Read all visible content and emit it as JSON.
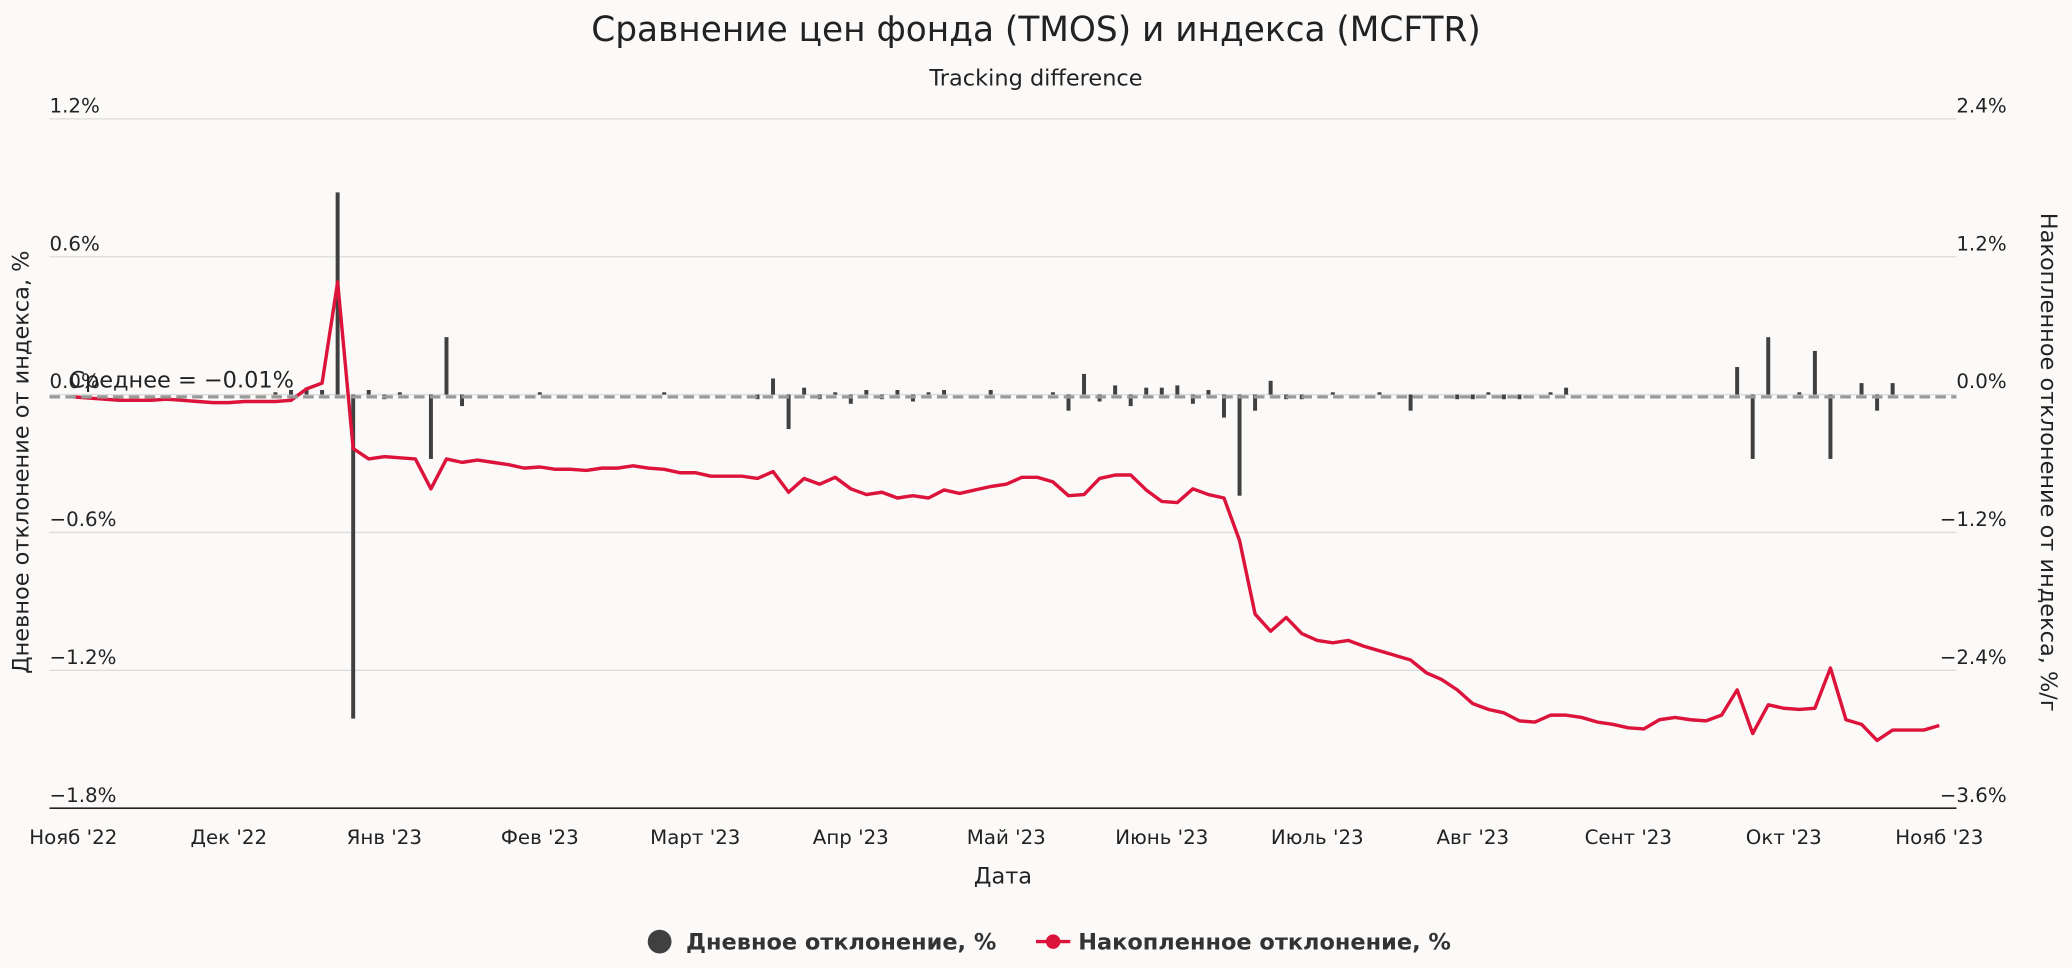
{
  "chart_data": {
    "type": "combo",
    "title": "Сравнение цен фонда (TMOS) и индекса (MCFTR)",
    "subtitle": "Tracking difference",
    "x_label": "Дата",
    "y_label": "Дневное отклонение от индекса, %",
    "y2_label": "Накопленное отклонение от индекса, %/г",
    "annotation": {
      "text": "Среднее = −0.01%",
      "value": -0.01
    },
    "grid": true,
    "legend": "bottom",
    "ylim": [
      -1.8,
      1.2
    ],
    "yticks": [
      {
        "value": 1.2,
        "label": "1.2%"
      },
      {
        "value": 0.6,
        "label": "0.6%"
      },
      {
        "value": 0,
        "label": "0.0%"
      },
      {
        "value": -0.6,
        "label": "−0.6%"
      },
      {
        "value": -1.2,
        "label": "−1.2%"
      },
      {
        "value": -1.8,
        "label": "−1.8%"
      }
    ],
    "y2lim": [
      -3.6,
      2.4
    ],
    "y2ticks": [
      {
        "value": 2.4,
        "label": "2.4%"
      },
      {
        "value": 1.2,
        "label": "1.2%"
      },
      {
        "value": 0,
        "label": "0.0%"
      },
      {
        "value": -1.2,
        "label": "−1.2%"
      },
      {
        "value": -2.4,
        "label": "−2.4%"
      },
      {
        "value": -3.6,
        "label": "−3.6%"
      }
    ],
    "categories": [
      "Нояб '22",
      null,
      null,
      null,
      null,
      null,
      null,
      null,
      null,
      null,
      "Дек '22",
      null,
      null,
      null,
      null,
      null,
      null,
      null,
      null,
      null,
      "Янв '23",
      null,
      null,
      null,
      null,
      null,
      null,
      null,
      null,
      null,
      "Фев '23",
      null,
      null,
      null,
      null,
      null,
      null,
      null,
      null,
      null,
      "Март '23",
      null,
      null,
      null,
      null,
      null,
      null,
      null,
      null,
      null,
      "Апр '23",
      null,
      null,
      null,
      null,
      null,
      null,
      null,
      null,
      null,
      "Май '23",
      null,
      null,
      null,
      null,
      null,
      null,
      null,
      null,
      null,
      "Июнь '23",
      null,
      null,
      null,
      null,
      null,
      null,
      null,
      null,
      null,
      "Июль '23",
      null,
      null,
      null,
      null,
      null,
      null,
      null,
      null,
      null,
      "Авг '23",
      null,
      null,
      null,
      null,
      null,
      null,
      null,
      null,
      null,
      "Сент '23",
      null,
      null,
      null,
      null,
      null,
      null,
      null,
      null,
      null,
      "Окт '23",
      null,
      null,
      null,
      null,
      null,
      null,
      null,
      null,
      null,
      "Нояб '23"
    ],
    "series": [
      {
        "name": "Дневное отклонение, %",
        "type": "bar",
        "axis": "y",
        "color": "#404040",
        "values": [
          0,
          0,
          0,
          0,
          0,
          0,
          0,
          0,
          0,
          0,
          0,
          0,
          0,
          0.01,
          0.02,
          0.03,
          0.02,
          0.88,
          -1.41,
          0.02,
          -0.02,
          0.01,
          0,
          -0.28,
          0.25,
          -0.05,
          0,
          0,
          0,
          0,
          0.01,
          0,
          0,
          0,
          0,
          0,
          0,
          0,
          0.01,
          0,
          0,
          0,
          0,
          0,
          -0.02,
          0.07,
          -0.15,
          0.03,
          -0.02,
          0.01,
          -0.04,
          0.02,
          -0.02,
          0.02,
          -0.03,
          0.01,
          0.02,
          0,
          0,
          0.02,
          0,
          0,
          0,
          0.01,
          -0.07,
          0.09,
          -0.03,
          0.04,
          -0.05,
          0.03,
          0.03,
          0.04,
          -0.04,
          0.02,
          -0.1,
          -0.44,
          -0.07,
          0.06,
          -0.02,
          -0.02,
          0,
          0.01,
          0,
          0,
          0.01,
          0,
          -0.07,
          0,
          0,
          -0.02,
          -0.02,
          0.01,
          -0.02,
          -0.02,
          0,
          0.01,
          0.03,
          0,
          0,
          0,
          0,
          0,
          0,
          0,
          0,
          0,
          0,
          0.12,
          -0.28,
          0.25,
          0,
          0.01,
          0.19,
          -0.28,
          0,
          0.05,
          -0.07,
          0.05,
          0,
          0,
          0
        ]
      },
      {
        "name": "Накопленное отклонение, %",
        "type": "line",
        "axis": "y2",
        "color": "#dc143c",
        "values": [
          -0.02,
          -0.03,
          -0.04,
          -0.05,
          -0.05,
          -0.05,
          -0.04,
          -0.05,
          -0.06,
          -0.07,
          -0.07,
          -0.06,
          -0.06,
          -0.06,
          -0.05,
          0.05,
          0.1,
          0.98,
          -0.47,
          -0.56,
          -0.54,
          -0.55,
          -0.56,
          -0.82,
          -0.56,
          -0.59,
          -0.57,
          -0.59,
          -0.61,
          -0.64,
          -0.63,
          -0.65,
          -0.65,
          -0.66,
          -0.64,
          -0.64,
          -0.62,
          -0.64,
          -0.65,
          -0.68,
          -0.68,
          -0.71,
          -0.71,
          -0.71,
          -0.73,
          -0.67,
          -0.85,
          -0.73,
          -0.78,
          -0.72,
          -0.82,
          -0.87,
          -0.85,
          -0.9,
          -0.88,
          -0.9,
          -0.83,
          -0.86,
          -0.83,
          -0.8,
          -0.78,
          -0.72,
          -0.72,
          -0.76,
          -0.88,
          -0.87,
          -0.73,
          -0.7,
          -0.7,
          -0.83,
          -0.93,
          -0.94,
          -0.82,
          -0.87,
          -0.9,
          -1.27,
          -1.91,
          -2.06,
          -1.94,
          -2.08,
          -2.14,
          -2.16,
          -2.14,
          -2.19,
          -2.23,
          -2.27,
          -2.31,
          -2.42,
          -2.48,
          -2.57,
          -2.69,
          -2.74,
          -2.77,
          -2.84,
          -2.85,
          -2.79,
          -2.79,
          -2.81,
          -2.85,
          -2.87,
          -2.9,
          -2.91,
          -2.83,
          -2.81,
          -2.83,
          -2.84,
          -2.79,
          -2.57,
          -2.95,
          -2.7,
          -2.73,
          -2.74,
          -2.73,
          -2.38,
          -2.83,
          -2.87,
          -3.01,
          -2.92,
          -2.92,
          -2.92,
          -2.88
        ]
      }
    ]
  }
}
